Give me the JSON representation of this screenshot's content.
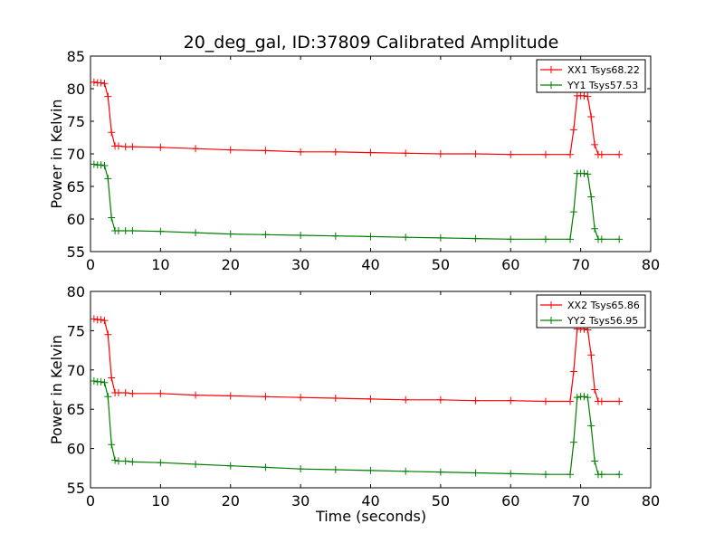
{
  "title": "20_deg_gal, ID:37809 Calibrated Amplitude",
  "xlabel": "Time (seconds)",
  "chart_data": [
    {
      "type": "line",
      "ylabel": "Power in Kelvin",
      "xlim": [
        0,
        80
      ],
      "ylim": [
        55,
        85
      ],
      "x_ticks": [
        "0",
        "10",
        "20",
        "30",
        "40",
        "50",
        "60",
        "70",
        "80"
      ],
      "y_ticks": [
        "55",
        "60",
        "65",
        "70",
        "75",
        "80",
        "85"
      ],
      "legend_position": "top-right",
      "series": [
        {
          "name": "XX1 Tsys68.22",
          "color": "#ff0000",
          "x": [
            0.5,
            1.0,
            1.5,
            2.0,
            2.5,
            3.0,
            3.5,
            4.0,
            5.0,
            6.0,
            10.0,
            15.0,
            20.0,
            25.0,
            30.0,
            35.0,
            40.0,
            45.0,
            50.0,
            55.0,
            60.0,
            65.0,
            68.5,
            69.0,
            69.5,
            70.0,
            70.5,
            71.0,
            71.5,
            72.0,
            72.5,
            73.0,
            75.5
          ],
          "y": [
            81.0,
            80.9,
            80.9,
            80.8,
            78.8,
            73.3,
            71.2,
            71.2,
            71.1,
            71.1,
            71.0,
            70.8,
            70.6,
            70.5,
            70.3,
            70.3,
            70.2,
            70.1,
            70.0,
            70.0,
            69.9,
            69.9,
            69.9,
            73.7,
            78.9,
            78.9,
            78.9,
            78.8,
            75.7,
            71.4,
            69.9,
            69.9,
            69.9
          ]
        },
        {
          "name": "YY1 Tsys57.53",
          "color": "#008000",
          "x": [
            0.5,
            1.0,
            1.5,
            2.0,
            2.5,
            3.0,
            3.5,
            4.0,
            5.0,
            6.0,
            10.0,
            15.0,
            20.0,
            25.0,
            30.0,
            35.0,
            40.0,
            45.0,
            50.0,
            55.0,
            60.0,
            65.0,
            68.5,
            69.0,
            69.5,
            70.0,
            70.5,
            71.0,
            71.5,
            72.0,
            72.5,
            73.0,
            75.5
          ],
          "y": [
            68.4,
            68.3,
            68.3,
            68.2,
            66.2,
            60.2,
            58.2,
            58.2,
            58.2,
            58.2,
            58.1,
            57.9,
            57.7,
            57.6,
            57.5,
            57.4,
            57.3,
            57.2,
            57.1,
            57.0,
            56.9,
            56.9,
            56.9,
            61.1,
            67.0,
            67.0,
            67.0,
            66.9,
            63.4,
            58.5,
            56.9,
            56.9,
            56.9
          ]
        }
      ]
    },
    {
      "type": "line",
      "ylabel": "Power in Kelvin",
      "xlim": [
        0,
        80
      ],
      "ylim": [
        55,
        80
      ],
      "x_ticks": [
        "0",
        "10",
        "20",
        "30",
        "40",
        "50",
        "60",
        "70",
        "80"
      ],
      "y_ticks": [
        "55",
        "60",
        "65",
        "70",
        "75",
        "80"
      ],
      "legend_position": "top-right",
      "series": [
        {
          "name": "XX2 Tsys65.86",
          "color": "#ff0000",
          "x": [
            0.5,
            1.0,
            1.5,
            2.0,
            2.5,
            3.0,
            3.5,
            4.0,
            5.0,
            6.0,
            10.0,
            15.0,
            20.0,
            25.0,
            30.0,
            35.0,
            40.0,
            45.0,
            50.0,
            55.0,
            60.0,
            65.0,
            68.5,
            69.0,
            69.5,
            70.0,
            70.5,
            71.0,
            71.5,
            72.0,
            72.5,
            73.0,
            75.5
          ],
          "y": [
            76.5,
            76.4,
            76.4,
            76.3,
            74.5,
            69.0,
            67.1,
            67.1,
            67.1,
            67.0,
            67.0,
            66.8,
            66.7,
            66.6,
            66.5,
            66.4,
            66.3,
            66.2,
            66.2,
            66.1,
            66.1,
            66.0,
            66.0,
            69.8,
            75.2,
            75.2,
            75.2,
            75.1,
            71.9,
            67.5,
            66.0,
            66.0,
            66.0
          ]
        },
        {
          "name": "YY2 Tsys56.95",
          "color": "#008000",
          "x": [
            0.5,
            1.0,
            1.5,
            2.0,
            2.5,
            3.0,
            3.5,
            4.0,
            5.0,
            6.0,
            10.0,
            15.0,
            20.0,
            25.0,
            30.0,
            35.0,
            40.0,
            45.0,
            50.0,
            55.0,
            60.0,
            65.0,
            68.5,
            69.0,
            69.5,
            70.0,
            70.5,
            71.0,
            71.5,
            72.0,
            72.5,
            73.0,
            75.5
          ],
          "y": [
            68.6,
            68.5,
            68.5,
            68.4,
            66.6,
            60.5,
            58.5,
            58.4,
            58.4,
            58.3,
            58.2,
            58.0,
            57.8,
            57.6,
            57.4,
            57.3,
            57.2,
            57.1,
            57.0,
            56.9,
            56.8,
            56.7,
            56.7,
            60.8,
            66.5,
            66.6,
            66.6,
            66.5,
            62.9,
            58.4,
            56.7,
            56.7,
            56.7
          ]
        }
      ]
    }
  ]
}
